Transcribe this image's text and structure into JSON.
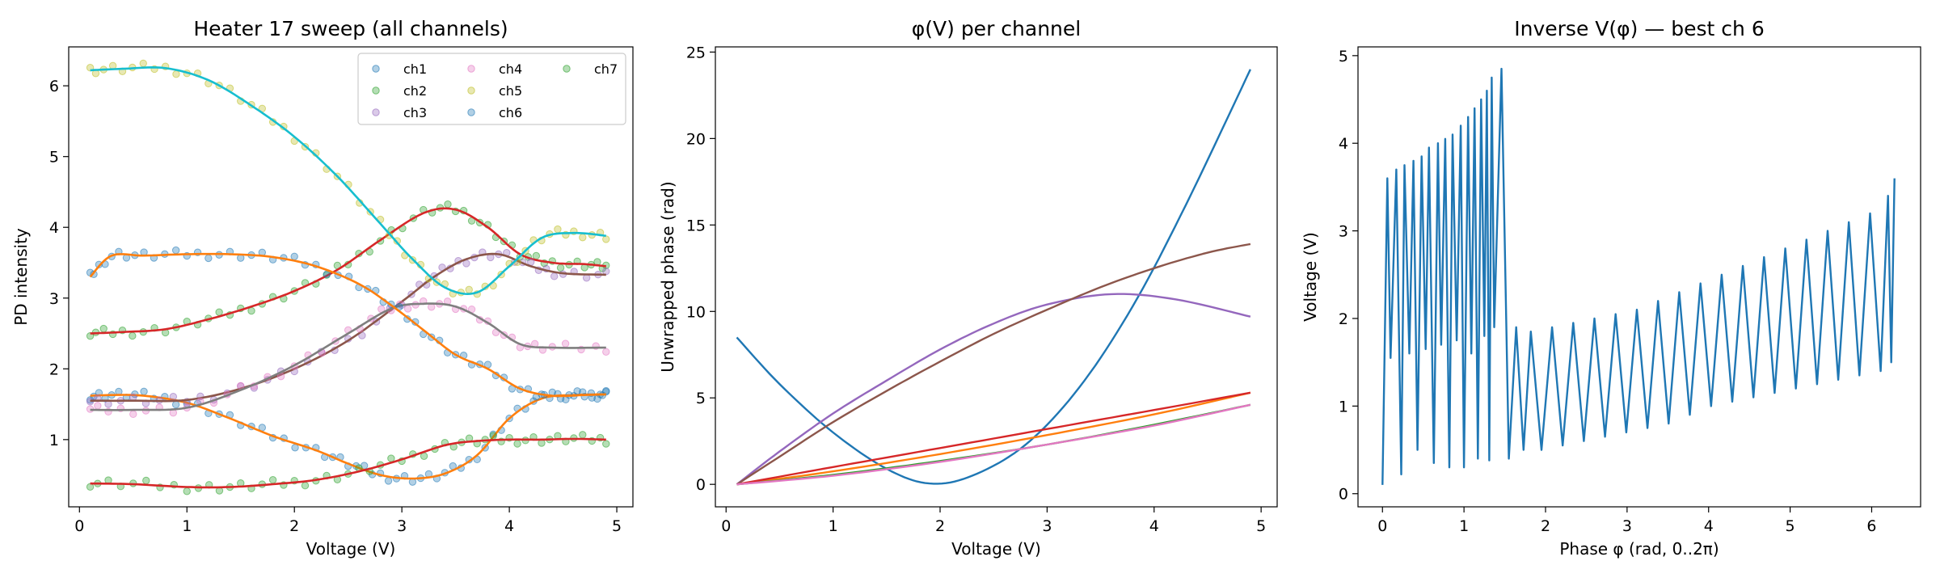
{
  "chart_data": [
    {
      "type": "scatter",
      "title": "Heater 17 sweep (all channels)",
      "xlabel": "Voltage (V)",
      "ylabel": "PD intensity",
      "xlim": [
        -0.1,
        5.15
      ],
      "ylim": [
        0.05,
        6.55
      ],
      "xticks": [
        0,
        1,
        2,
        3,
        4,
        5
      ],
      "yticks": [
        1,
        2,
        3,
        4,
        5,
        6
      ],
      "grid": false,
      "legend": {
        "placement": "top-right",
        "columns": 3
      },
      "series": [
        {
          "name": "ch1",
          "color": "#1f77b4",
          "fit_color": "#ff7f0e",
          "x": [
            0.1,
            0.3,
            0.6,
            1.0,
            1.4,
            1.8,
            2.2,
            2.5,
            2.8,
            3.1,
            3.4,
            3.7,
            4.0,
            4.3,
            4.6,
            4.9
          ],
          "y": [
            1.62,
            1.63,
            1.62,
            1.52,
            1.3,
            1.05,
            0.85,
            0.66,
            0.5,
            0.45,
            0.52,
            0.78,
            1.3,
            1.58,
            1.63,
            1.64
          ]
        },
        {
          "name": "ch2",
          "color": "#2ca02c",
          "fit_color": "#d62728",
          "x": [
            0.1,
            0.4,
            0.8,
            1.2,
            1.6,
            2.0,
            2.4,
            2.8,
            3.2,
            3.5,
            3.8,
            4.1,
            4.4,
            4.7,
            4.9
          ],
          "y": [
            2.5,
            2.52,
            2.56,
            2.7,
            2.88,
            3.1,
            3.4,
            3.82,
            4.2,
            4.25,
            4.0,
            3.62,
            3.5,
            3.48,
            3.45
          ]
        },
        {
          "name": "ch3",
          "color": "#9467bd",
          "fit_color": "#8c564b",
          "x": [
            0.1,
            0.5,
            1.0,
            1.5,
            2.0,
            2.5,
            3.0,
            3.3,
            3.6,
            3.9,
            4.2,
            4.5,
            4.9
          ],
          "y": [
            1.55,
            1.55,
            1.56,
            1.72,
            2.0,
            2.4,
            2.95,
            3.3,
            3.55,
            3.62,
            3.45,
            3.35,
            3.33
          ]
        },
        {
          "name": "ch4",
          "color": "#e377c2",
          "fit_color": "#7f7f7f",
          "x": [
            0.1,
            0.5,
            1.0,
            1.5,
            2.0,
            2.5,
            2.9,
            3.2,
            3.5,
            3.8,
            4.1,
            4.4,
            4.9
          ],
          "y": [
            1.42,
            1.42,
            1.45,
            1.7,
            2.05,
            2.5,
            2.85,
            2.92,
            2.88,
            2.65,
            2.35,
            2.3,
            2.3
          ]
        },
        {
          "name": "ch5",
          "color": "#bcbd22",
          "fit_color": "#17becf",
          "x": [
            0.1,
            0.4,
            0.8,
            1.2,
            1.6,
            2.0,
            2.4,
            2.8,
            3.1,
            3.4,
            3.7,
            4.0,
            4.3,
            4.6,
            4.9
          ],
          "y": [
            6.22,
            6.24,
            6.25,
            6.08,
            5.72,
            5.28,
            4.72,
            4.05,
            3.55,
            3.15,
            3.08,
            3.45,
            3.85,
            3.92,
            3.88
          ]
        },
        {
          "name": "ch6",
          "color": "#1f77b4",
          "fit_color": "#ff7f0e",
          "x": [
            0.1,
            0.3,
            0.6,
            1.0,
            1.4,
            1.8,
            2.2,
            2.6,
            2.9,
            3.2,
            3.5,
            3.8,
            4.1,
            4.4,
            4.7,
            4.9
          ],
          "y": [
            3.3,
            3.6,
            3.6,
            3.62,
            3.62,
            3.58,
            3.45,
            3.2,
            2.9,
            2.55,
            2.2,
            2.0,
            1.72,
            1.62,
            1.63,
            1.64
          ]
        },
        {
          "name": "ch7",
          "color": "#2ca02c",
          "fit_color": "#d62728",
          "x": [
            0.1,
            0.5,
            1.0,
            1.4,
            1.8,
            2.2,
            2.6,
            3.0,
            3.4,
            3.7,
            4.0,
            4.3,
            4.6,
            4.9
          ],
          "y": [
            0.38,
            0.37,
            0.33,
            0.33,
            0.37,
            0.43,
            0.55,
            0.72,
            0.92,
            0.98,
            1.0,
            1.0,
            1.01,
            1.0
          ]
        }
      ]
    },
    {
      "type": "line",
      "title": "φ(V) per channel",
      "xlabel": "Voltage (V)",
      "ylabel": "Unwrapped phase (rad)",
      "xlim": [
        -0.1,
        5.15
      ],
      "ylim": [
        -1.3,
        25.3
      ],
      "xticks": [
        0,
        1,
        2,
        3,
        4,
        5
      ],
      "yticks": [
        0,
        5,
        10,
        15,
        20,
        25
      ],
      "grid": false,
      "series": [
        {
          "color": "#1f77b4",
          "x": [
            0.1,
            0.5,
            1.0,
            1.5,
            1.9,
            2.3,
            2.8,
            3.3,
            3.8,
            4.3,
            4.9
          ],
          "y": [
            8.5,
            5.8,
            3.0,
            0.9,
            0.05,
            0.5,
            2.3,
            5.6,
            10.3,
            16.2,
            24.0
          ]
        },
        {
          "color": "#ff7f0e",
          "x": [
            0.1,
            1.0,
            2.0,
            3.0,
            4.0,
            4.9
          ],
          "y": [
            0,
            0.75,
            1.75,
            2.85,
            4.05,
            5.3
          ]
        },
        {
          "color": "#2ca02c",
          "x": [
            0.1,
            1.0,
            2.0,
            3.0,
            4.0,
            4.9
          ],
          "y": [
            0,
            0.55,
            1.35,
            2.3,
            3.45,
            4.6
          ]
        },
        {
          "color": "#d62728",
          "x": [
            0.1,
            1.0,
            2.0,
            3.0,
            4.0,
            4.9
          ],
          "y": [
            0,
            1.0,
            2.1,
            3.2,
            4.3,
            5.3
          ]
        },
        {
          "color": "#9467bd",
          "x": [
            0.1,
            0.5,
            1.0,
            1.5,
            2.0,
            2.5,
            3.0,
            3.6,
            4.2,
            4.9
          ],
          "y": [
            0,
            1.9,
            4.1,
            6.0,
            7.8,
            9.3,
            10.4,
            11.0,
            10.7,
            9.7
          ]
        },
        {
          "color": "#8c564b",
          "x": [
            0.1,
            0.5,
            1.0,
            1.5,
            2.0,
            2.5,
            3.0,
            3.5,
            4.0,
            4.5,
            4.9
          ],
          "y": [
            0,
            1.6,
            3.6,
            5.4,
            7.1,
            8.7,
            10.1,
            11.4,
            12.5,
            13.4,
            13.9
          ]
        },
        {
          "color": "#e377c2",
          "x": [
            0.1,
            1.0,
            2.0,
            3.0,
            4.0,
            4.9
          ],
          "y": [
            0,
            0.5,
            1.3,
            2.3,
            3.4,
            4.6
          ]
        }
      ]
    },
    {
      "type": "line",
      "title": "Inverse V(φ) — best ch 6",
      "xlabel": "Phase φ (rad, 0..2π)",
      "ylabel": "Voltage (V)",
      "xlim": [
        -0.3,
        6.6
      ],
      "ylim": [
        -0.15,
        5.1
      ],
      "xticks": [
        0,
        1,
        2,
        3,
        4,
        5,
        6
      ],
      "yticks": [
        0,
        1,
        2,
        3,
        4,
        5
      ],
      "grid": false,
      "series": [
        {
          "color": "#1f77b4",
          "x": [
            0.0,
            0.06,
            0.1,
            0.17,
            0.23,
            0.27,
            0.33,
            0.38,
            0.43,
            0.48,
            0.53,
            0.57,
            0.63,
            0.68,
            0.72,
            0.77,
            0.82,
            0.86,
            0.91,
            0.96,
            1.0,
            1.05,
            1.09,
            1.13,
            1.17,
            1.21,
            1.25,
            1.28,
            1.31,
            1.34,
            1.37,
            1.46,
            1.55,
            1.64,
            1.73,
            1.82,
            1.95,
            2.08,
            2.21,
            2.34,
            2.47,
            2.6,
            2.73,
            2.86,
            2.99,
            3.12,
            3.25,
            3.38,
            3.51,
            3.64,
            3.77,
            3.9,
            4.03,
            4.16,
            4.29,
            4.42,
            4.55,
            4.68,
            4.81,
            4.94,
            5.07,
            5.2,
            5.33,
            5.46,
            5.59,
            5.72,
            5.85,
            5.98,
            6.11,
            6.2,
            6.24,
            6.28
          ],
          "y": [
            0.1,
            3.6,
            1.55,
            3.7,
            0.22,
            3.75,
            1.6,
            3.8,
            0.5,
            3.85,
            1.65,
            3.95,
            0.35,
            4.0,
            1.7,
            4.05,
            0.3,
            4.1,
            1.75,
            4.2,
            0.3,
            4.3,
            1.6,
            4.4,
            0.4,
            4.5,
            1.8,
            4.6,
            0.38,
            4.75,
            1.9,
            4.85,
            0.4,
            1.9,
            0.5,
            1.85,
            0.5,
            1.9,
            0.55,
            1.95,
            0.6,
            2.0,
            0.65,
            2.05,
            0.7,
            2.1,
            0.75,
            2.2,
            0.8,
            2.3,
            0.9,
            2.4,
            1.0,
            2.5,
            1.05,
            2.6,
            1.1,
            2.7,
            1.15,
            2.8,
            1.2,
            2.9,
            1.25,
            3.0,
            1.3,
            3.1,
            1.35,
            3.2,
            1.4,
            3.4,
            1.5,
            3.6
          ]
        }
      ]
    }
  ]
}
